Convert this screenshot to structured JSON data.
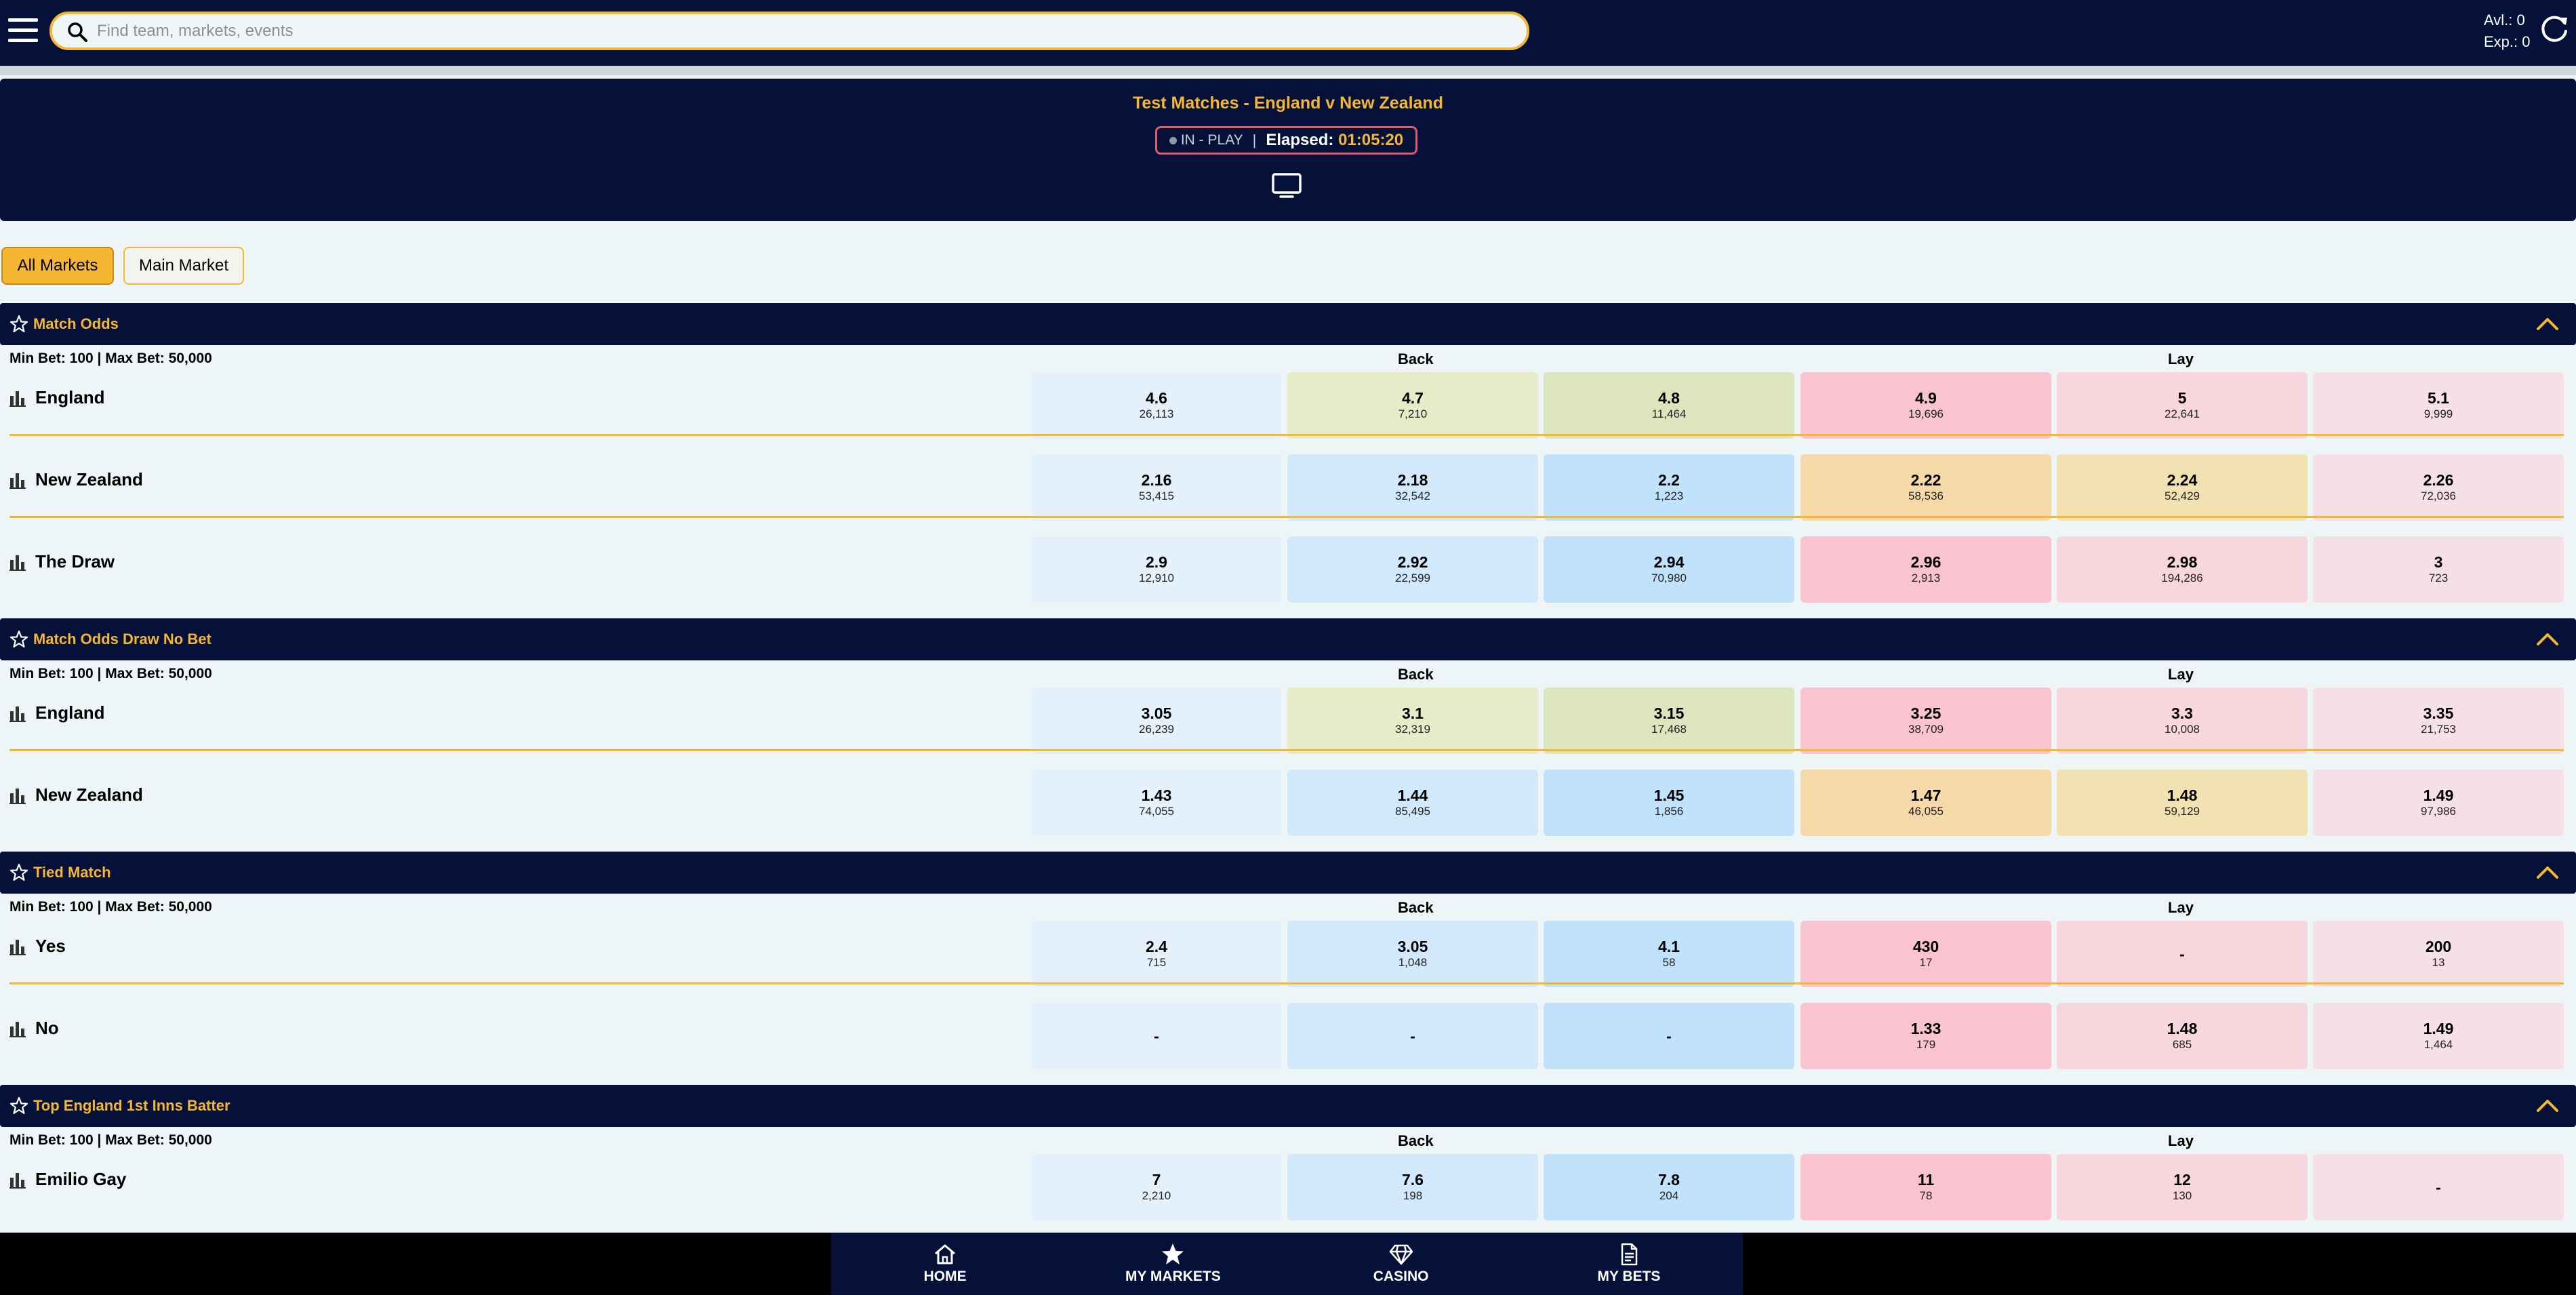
{
  "search": {
    "placeholder": "Find team, markets, events"
  },
  "account": {
    "available": "Avl.: 0",
    "exposure": "Exp.: 0"
  },
  "event": {
    "title": "Test Matches - England v New Zealand",
    "status": "IN - PLAY",
    "elapsed_label": "Elapsed:",
    "elapsed_value": "01:05:20"
  },
  "filters": {
    "all": "All Markets",
    "main": "Main Market"
  },
  "labels": {
    "back": "Back",
    "lay": "Lay"
  },
  "markets": [
    {
      "name": "Match Odds",
      "limits": "Min Bet: 100 | Max Bet: 50,000",
      "runners": [
        {
          "name": "England",
          "odds": [
            [
              "4.6",
              "26,113"
            ],
            [
              "4.7",
              "7,210"
            ],
            [
              "4.8",
              "11,464"
            ],
            [
              "4.9",
              "19,696"
            ],
            [
              "5",
              "22,641"
            ],
            [
              "5.1",
              "9,999"
            ]
          ]
        },
        {
          "name": "New Zealand",
          "odds": [
            [
              "2.16",
              "53,415"
            ],
            [
              "2.18",
              "32,542"
            ],
            [
              "2.2",
              "1,223"
            ],
            [
              "2.22",
              "58,536"
            ],
            [
              "2.24",
              "52,429"
            ],
            [
              "2.26",
              "72,036"
            ]
          ]
        },
        {
          "name": "The Draw",
          "odds": [
            [
              "2.9",
              "12,910"
            ],
            [
              "2.92",
              "22,599"
            ],
            [
              "2.94",
              "70,980"
            ],
            [
              "2.96",
              "2,913"
            ],
            [
              "2.98",
              "194,286"
            ],
            [
              "3",
              "723"
            ]
          ]
        }
      ]
    },
    {
      "name": "Match Odds Draw No Bet",
      "limits": "Min Bet: 100 | Max Bet: 50,000",
      "runners": [
        {
          "name": "England",
          "odds": [
            [
              "3.05",
              "26,239"
            ],
            [
              "3.1",
              "32,319"
            ],
            [
              "3.15",
              "17,468"
            ],
            [
              "3.25",
              "38,709"
            ],
            [
              "3.3",
              "10,008"
            ],
            [
              "3.35",
              "21,753"
            ]
          ]
        },
        {
          "name": "New Zealand",
          "odds": [
            [
              "1.43",
              "74,055"
            ],
            [
              "1.44",
              "85,495"
            ],
            [
              "1.45",
              "1,856"
            ],
            [
              "1.47",
              "46,055"
            ],
            [
              "1.48",
              "59,129"
            ],
            [
              "1.49",
              "97,986"
            ]
          ]
        }
      ]
    },
    {
      "name": "Tied Match",
      "limits": "Min Bet: 100 | Max Bet: 50,000",
      "runners": [
        {
          "name": "Yes",
          "odds": [
            [
              "2.4",
              "715"
            ],
            [
              "3.05",
              "1,048"
            ],
            [
              "4.1",
              "58"
            ],
            [
              "430",
              "17"
            ],
            [
              "-",
              ""
            ],
            [
              "200",
              "13"
            ]
          ]
        },
        {
          "name": "No",
          "odds": [
            [
              "-",
              ""
            ],
            [
              "-",
              ""
            ],
            [
              "-",
              ""
            ],
            [
              "1.33",
              "179"
            ],
            [
              "1.48",
              "685"
            ],
            [
              "1.49",
              "1,464"
            ]
          ]
        }
      ]
    },
    {
      "name": "Top England 1st Inns Batter",
      "limits": "Min Bet: 100 | Max Bet: 50,000",
      "runners": [
        {
          "name": "Emilio Gay",
          "odds": [
            [
              "7",
              "2,210"
            ],
            [
              "7.6",
              "198"
            ],
            [
              "7.8",
              "204"
            ],
            [
              "11",
              "78"
            ],
            [
              "12",
              "130"
            ],
            [
              "-",
              ""
            ]
          ]
        }
      ]
    }
  ],
  "nav": {
    "home": "HOME",
    "my_markets": "MY MARKETS",
    "casino": "CASINO",
    "my_bets": "MY BETS"
  },
  "colors": {
    "navy": "#06113a",
    "accent": "#f5b731",
    "inplay_border": "#e2596a"
  }
}
